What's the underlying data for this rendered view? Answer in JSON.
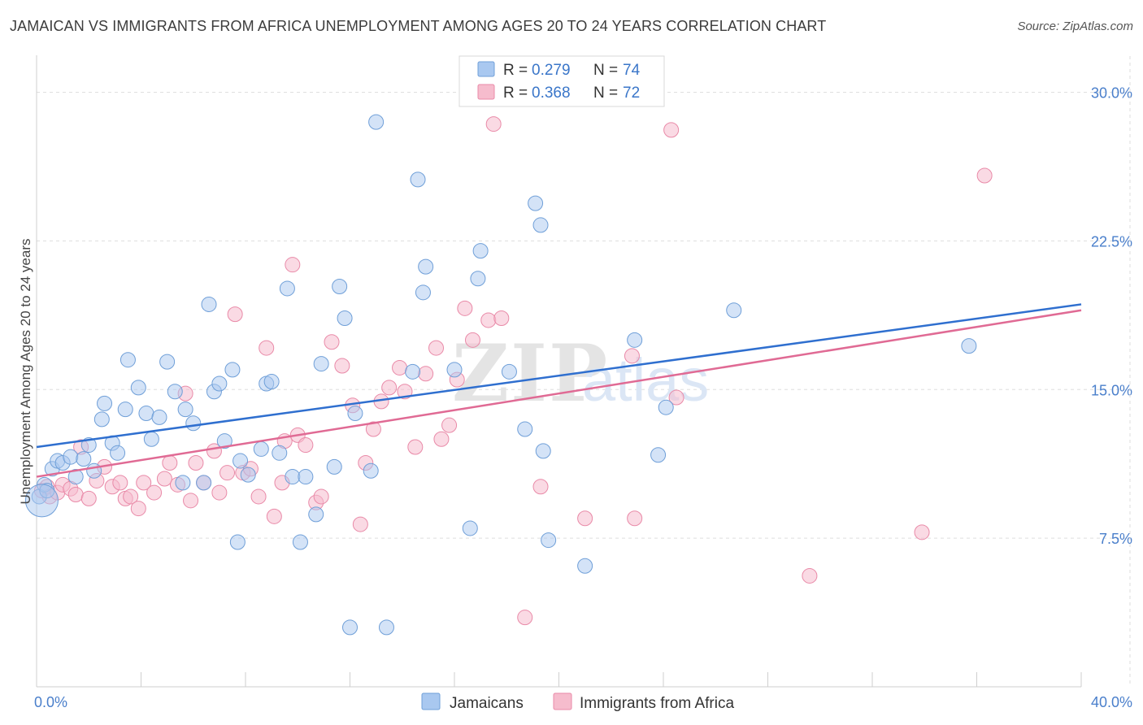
{
  "header": {
    "title": "JAMAICAN VS IMMIGRANTS FROM AFRICA UNEMPLOYMENT AMONG AGES 20 TO 24 YEARS CORRELATION CHART",
    "source": "Source: ZipAtlas.com"
  },
  "watermark": {
    "zip": "ZIP",
    "atlas": "atlas"
  },
  "colors": {
    "jamaicans_fill": "#a9c8f0",
    "jamaicans_stroke": "#6f9fd8",
    "jamaicans_line": "#2f6fcf",
    "africa_fill": "#f6bccd",
    "africa_stroke": "#e98aa8",
    "africa_line": "#e06a94",
    "grid": "#dddddd",
    "tick_label": "#4a7fcb"
  },
  "legend": {
    "rows": [
      {
        "r_label": "R = ",
        "r_value": "0.279",
        "n_label": "N = ",
        "n_value": "74"
      },
      {
        "r_label": "R = ",
        "r_value": "0.368",
        "n_label": "N = ",
        "n_value": "72"
      }
    ]
  },
  "bottom_legend": [
    "Jamaicans",
    "Immigrants from Africa"
  ],
  "chart_data": {
    "type": "scatter",
    "title": "JAMAICAN VS IMMIGRANTS FROM AFRICA UNEMPLOYMENT AMONG AGES 20 TO 24 YEARS CORRELATION CHART",
    "xlabel": "",
    "ylabel": "Unemployment Among Ages 20 to 24 years",
    "xlim": [
      0,
      40
    ],
    "ylim": [
      0,
      31.5
    ],
    "x_tick_labels": [
      "0.0%",
      "40.0%"
    ],
    "y_ticks": [
      7.5,
      15.0,
      22.5,
      30.0
    ],
    "y_tick_labels": [
      "7.5%",
      "15.0%",
      "22.5%",
      "30.0%"
    ],
    "grid": true,
    "legend_position": "top-center",
    "series": [
      {
        "name": "Jamaicans",
        "r": 0.279,
        "n": 74,
        "trend": {
          "x": [
            0,
            40
          ],
          "y": [
            12.1,
            19.3
          ]
        },
        "points": [
          [
            0.1,
            9.6
          ],
          [
            0.3,
            10.2
          ],
          [
            0.4,
            9.9
          ],
          [
            0.6,
            11.0
          ],
          [
            0.8,
            11.4
          ],
          [
            1.0,
            11.3
          ],
          [
            1.3,
            11.6
          ],
          [
            1.5,
            10.6
          ],
          [
            1.8,
            11.5
          ],
          [
            2.0,
            12.2
          ],
          [
            2.2,
            10.9
          ],
          [
            2.5,
            13.5
          ],
          [
            2.6,
            14.3
          ],
          [
            2.9,
            12.3
          ],
          [
            3.1,
            11.8
          ],
          [
            3.4,
            14.0
          ],
          [
            3.5,
            16.5
          ],
          [
            3.9,
            15.1
          ],
          [
            4.2,
            13.8
          ],
          [
            4.4,
            12.5
          ],
          [
            4.7,
            13.6
          ],
          [
            5.0,
            16.4
          ],
          [
            5.3,
            14.9
          ],
          [
            5.6,
            10.3
          ],
          [
            5.7,
            14.0
          ],
          [
            6.0,
            13.3
          ],
          [
            6.4,
            10.3
          ],
          [
            6.6,
            19.3
          ],
          [
            6.8,
            14.9
          ],
          [
            7.0,
            15.3
          ],
          [
            7.2,
            12.4
          ],
          [
            7.5,
            16.0
          ],
          [
            7.7,
            7.3
          ],
          [
            7.8,
            11.4
          ],
          [
            8.1,
            10.7
          ],
          [
            8.6,
            12.0
          ],
          [
            8.8,
            15.3
          ],
          [
            9.0,
            15.4
          ],
          [
            9.3,
            11.8
          ],
          [
            9.6,
            20.1
          ],
          [
            9.8,
            10.6
          ],
          [
            10.1,
            7.3
          ],
          [
            10.3,
            10.6
          ],
          [
            10.7,
            8.7
          ],
          [
            10.9,
            16.3
          ],
          [
            11.4,
            11.1
          ],
          [
            11.6,
            20.2
          ],
          [
            11.8,
            18.6
          ],
          [
            12.0,
            3.0
          ],
          [
            12.2,
            13.8
          ],
          [
            12.8,
            10.9
          ],
          [
            13.0,
            28.5
          ],
          [
            13.4,
            3.0
          ],
          [
            14.4,
            15.9
          ],
          [
            14.6,
            25.6
          ],
          [
            14.8,
            19.9
          ],
          [
            14.9,
            21.2
          ],
          [
            16.0,
            16.0
          ],
          [
            16.6,
            8.0
          ],
          [
            16.9,
            20.6
          ],
          [
            17.0,
            22.0
          ],
          [
            18.1,
            15.9
          ],
          [
            18.7,
            13.0
          ],
          [
            19.1,
            24.4
          ],
          [
            19.3,
            23.3
          ],
          [
            19.4,
            11.9
          ],
          [
            19.6,
            7.4
          ],
          [
            21.0,
            6.1
          ],
          [
            22.9,
            17.5
          ],
          [
            23.8,
            11.7
          ],
          [
            24.1,
            14.1
          ],
          [
            26.7,
            19.0
          ],
          [
            35.7,
            17.2
          ],
          [
            0.2,
            9.4
          ]
        ]
      },
      {
        "name": "Immigrants from Africa",
        "r": 0.368,
        "n": 72,
        "trend": {
          "x": [
            0,
            40
          ],
          "y": [
            10.6,
            19.0
          ]
        },
        "points": [
          [
            0.2,
            9.9
          ],
          [
            0.4,
            10.1
          ],
          [
            0.5,
            9.6
          ],
          [
            0.8,
            9.8
          ],
          [
            1.0,
            10.2
          ],
          [
            1.3,
            10.0
          ],
          [
            1.5,
            9.7
          ],
          [
            1.7,
            12.1
          ],
          [
            2.0,
            9.5
          ],
          [
            2.3,
            10.4
          ],
          [
            2.6,
            11.1
          ],
          [
            2.9,
            10.1
          ],
          [
            3.2,
            10.3
          ],
          [
            3.4,
            9.5
          ],
          [
            3.6,
            9.6
          ],
          [
            3.9,
            9.0
          ],
          [
            4.1,
            10.3
          ],
          [
            4.5,
            9.8
          ],
          [
            4.9,
            10.5
          ],
          [
            5.1,
            11.3
          ],
          [
            5.4,
            10.2
          ],
          [
            5.7,
            14.8
          ],
          [
            5.9,
            9.4
          ],
          [
            6.1,
            11.3
          ],
          [
            6.4,
            10.3
          ],
          [
            6.8,
            11.9
          ],
          [
            7.0,
            9.8
          ],
          [
            7.3,
            10.8
          ],
          [
            7.6,
            18.8
          ],
          [
            7.9,
            10.8
          ],
          [
            8.2,
            11.0
          ],
          [
            8.5,
            9.6
          ],
          [
            8.8,
            17.1
          ],
          [
            9.1,
            8.6
          ],
          [
            9.4,
            10.3
          ],
          [
            9.5,
            12.4
          ],
          [
            9.8,
            21.3
          ],
          [
            10.0,
            12.7
          ],
          [
            10.3,
            12.2
          ],
          [
            10.7,
            9.3
          ],
          [
            10.9,
            9.6
          ],
          [
            11.3,
            17.4
          ],
          [
            11.7,
            16.2
          ],
          [
            12.1,
            14.2
          ],
          [
            12.4,
            8.2
          ],
          [
            12.6,
            11.3
          ],
          [
            12.9,
            13.0
          ],
          [
            13.2,
            14.4
          ],
          [
            13.5,
            15.1
          ],
          [
            13.9,
            16.1
          ],
          [
            14.1,
            14.9
          ],
          [
            14.5,
            12.1
          ],
          [
            14.9,
            15.8
          ],
          [
            15.3,
            17.1
          ],
          [
            15.5,
            12.5
          ],
          [
            15.8,
            13.2
          ],
          [
            16.1,
            15.5
          ],
          [
            16.4,
            19.1
          ],
          [
            16.7,
            17.5
          ],
          [
            17.3,
            18.5
          ],
          [
            17.5,
            28.4
          ],
          [
            17.8,
            18.6
          ],
          [
            18.7,
            3.5
          ],
          [
            19.3,
            10.1
          ],
          [
            21.0,
            8.5
          ],
          [
            22.9,
            8.5
          ],
          [
            22.8,
            16.7
          ],
          [
            24.3,
            28.1
          ],
          [
            24.5,
            14.6
          ],
          [
            29.6,
            5.6
          ],
          [
            33.9,
            7.8
          ],
          [
            36.3,
            25.8
          ]
        ]
      }
    ]
  }
}
